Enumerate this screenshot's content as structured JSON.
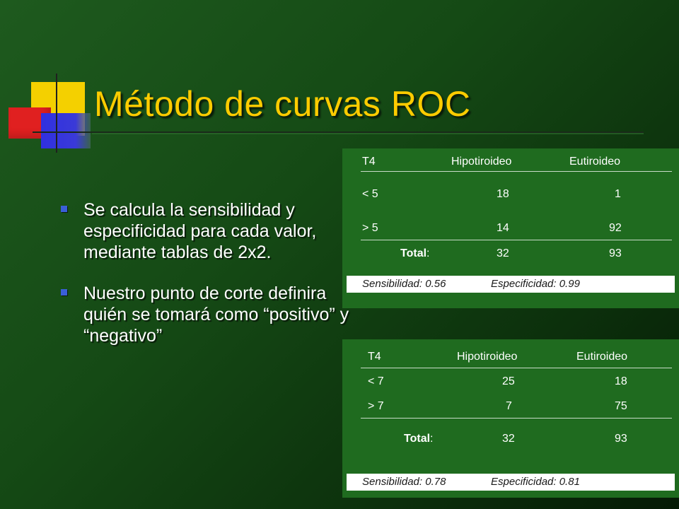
{
  "title": "Método de curvas ROC",
  "bullets": [
    "Se calcula la sensibilidad y especificidad para cada valor, mediante tablas de 2x2.",
    "Nuestro punto de corte definira quién se tomará como “positivo” y “negativo”"
  ],
  "tables": [
    {
      "headers": [
        "T4",
        "Hipotiroideo",
        "Eutiroideo"
      ],
      "rows": [
        [
          "< 5",
          "18",
          "1"
        ],
        [
          "> 5",
          "14",
          "92"
        ]
      ],
      "total_label": "Total",
      "totals": [
        "32",
        "93"
      ],
      "sensitivity": "Sensibilidad: 0.56",
      "specificity": "Especificidad: 0.99"
    },
    {
      "headers": [
        "T4",
        "Hipotiroideo",
        "Eutiroideo"
      ],
      "rows": [
        [
          "< 7",
          "25",
          "18"
        ],
        [
          "> 7",
          "7",
          "75"
        ]
      ],
      "total_label": "Total",
      "totals": [
        "32",
        "93"
      ],
      "sensitivity": "Sensibilidad: 0.78",
      "specificity": "Especificidad: 0.81"
    }
  ],
  "colors": {
    "background": "#154a15",
    "title": "#ffcc00",
    "table_background": "#1f6b1f",
    "bullet_marker": "#3a5fd8"
  }
}
